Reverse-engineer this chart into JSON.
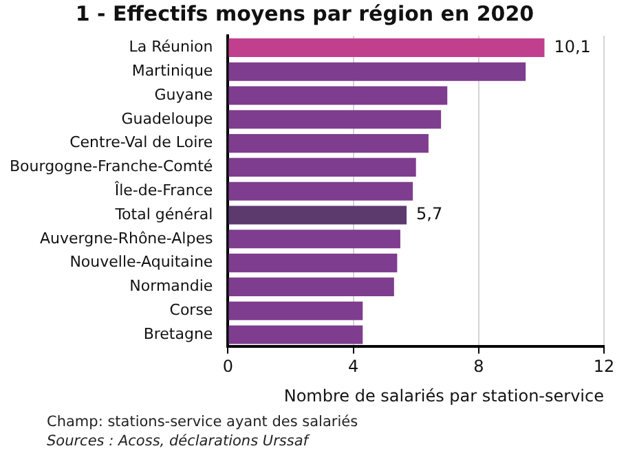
{
  "chart_data": {
    "type": "bar",
    "orientation": "horizontal",
    "title": "1 - Effectifs moyens par région en 2020",
    "xlabel": "Nombre de salariés par station-service",
    "categories": [
      "La Réunion",
      "Martinique",
      "Guyane",
      "Guadeloupe",
      "Centre-Val de Loire",
      "Bourgogne-Franche-Comté",
      "Île-de-France",
      "Total général",
      "Auvergne-Rhône-Alpes",
      "Nouvelle-Aquitaine",
      "Normandie",
      "Corse",
      "Bretagne"
    ],
    "values": [
      10.1,
      9.5,
      7.0,
      6.8,
      6.4,
      6.0,
      5.9,
      5.7,
      5.5,
      5.4,
      5.3,
      4.3,
      4.3
    ],
    "colors": [
      "#c0408e",
      "#7e3d8e",
      "#7e3d8e",
      "#7e3d8e",
      "#7e3d8e",
      "#7e3d8e",
      "#7e3d8e",
      "#5c3a6e",
      "#7e3d8e",
      "#7e3d8e",
      "#7e3d8e",
      "#7e3d8e",
      "#7e3d8e"
    ],
    "value_labels": [
      "10,1",
      null,
      null,
      null,
      null,
      null,
      null,
      "5,7",
      null,
      null,
      null,
      null,
      null
    ],
    "xlim": [
      0,
      12
    ],
    "xticks": [
      0,
      4,
      8,
      12
    ],
    "grid": "x",
    "legend": false,
    "annotations": [
      "Champ: stations-service ayant des salariés",
      "Sources : Acoss, déclarations Urssaf"
    ]
  }
}
